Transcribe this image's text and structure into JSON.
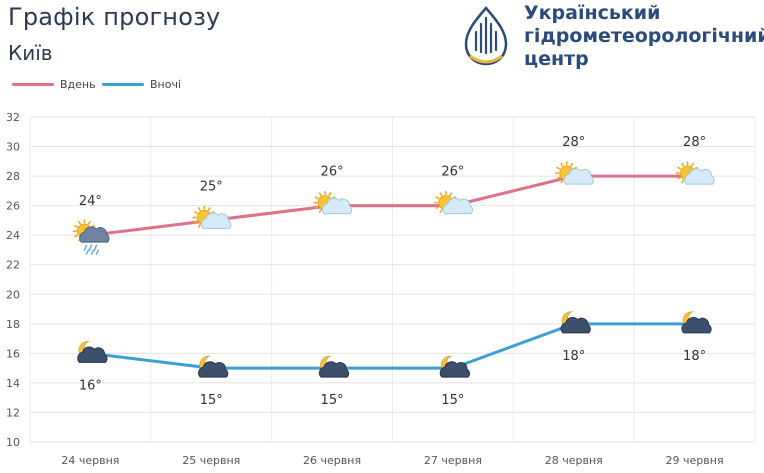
{
  "header": {
    "title": "Графік прогнозу",
    "city": "Київ",
    "organization": [
      "Український",
      "гідрометеорологічний",
      "центр"
    ]
  },
  "legend": {
    "day_label": "Вдень",
    "night_label": "Вночі"
  },
  "colors": {
    "day": "#e07088",
    "night": "#3c9fd3",
    "text": "#2e3a4f",
    "brand": "#2b4b7c",
    "grid": "#e2e2e2"
  },
  "chart_data": {
    "type": "line",
    "title": "Графік прогнозу",
    "xlabel": "",
    "ylabel": "",
    "categories": [
      "24 червня",
      "25 червня",
      "26 червня",
      "27 червня",
      "28 червня",
      "29 червня"
    ],
    "ylim": [
      10,
      32
    ],
    "yticks": [
      10,
      12,
      14,
      16,
      18,
      20,
      22,
      24,
      26,
      28,
      30,
      32
    ],
    "grid": true,
    "legend_position": "top-left",
    "series": [
      {
        "name": "Вдень",
        "values": [
          24,
          25,
          26,
          26,
          28,
          28
        ],
        "labels": [
          "24°",
          "25°",
          "26°",
          "26°",
          "28°",
          "28°"
        ],
        "icons": [
          "sun-cloud-rain-icon",
          "sun-cloud-icon",
          "sun-cloud-icon",
          "sun-cloud-icon",
          "sun-cloud-icon",
          "sun-cloud-icon"
        ]
      },
      {
        "name": "Вночі",
        "values": [
          16,
          15,
          15,
          15,
          18,
          18
        ],
        "labels": [
          "16°",
          "15°",
          "15°",
          "15°",
          "18°",
          "18°"
        ],
        "icons": [
          "moon-cloud-icon",
          "moon-cloud-icon",
          "moon-cloud-icon",
          "moon-cloud-icon",
          "moon-cloud-icon",
          "moon-cloud-icon"
        ]
      }
    ]
  }
}
